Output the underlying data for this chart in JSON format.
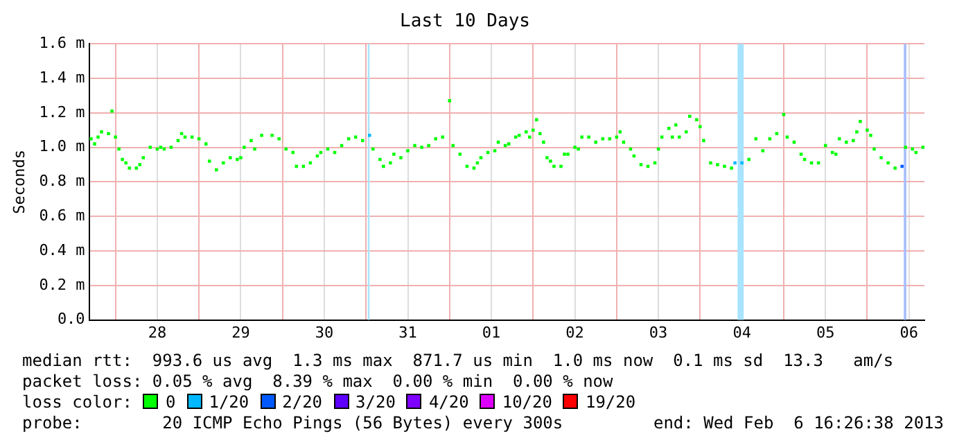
{
  "chart_data": {
    "type": "scatter",
    "title": "Last 10 Days",
    "ylabel": "Seconds",
    "legend_title": "loss color:",
    "legend": "bottom",
    "grid": true,
    "marker": "square",
    "xlim": [
      "2013-01-27T16:26",
      "2013-02-06T16:26"
    ],
    "xticks": [
      {
        "value": "2013-01-28T00:00",
        "label": null
      },
      {
        "value": "2013-01-28T12:00",
        "label": "28"
      },
      {
        "value": "2013-01-29T00:00",
        "label": null
      },
      {
        "value": "2013-01-29T12:00",
        "label": "29"
      },
      {
        "value": "2013-01-30T00:00",
        "label": null
      },
      {
        "value": "2013-01-30T12:00",
        "label": "30"
      },
      {
        "value": "2013-01-31T00:00",
        "label": null
      },
      {
        "value": "2013-01-31T12:00",
        "label": "31"
      },
      {
        "value": "2013-02-01T00:00",
        "label": null
      },
      {
        "value": "2013-02-01T12:00",
        "label": "01"
      },
      {
        "value": "2013-02-02T00:00",
        "label": null
      },
      {
        "value": "2013-02-02T12:00",
        "label": "02"
      },
      {
        "value": "2013-02-03T00:00",
        "label": null
      },
      {
        "value": "2013-02-03T12:00",
        "label": "03"
      },
      {
        "value": "2013-02-04T00:00",
        "label": null
      },
      {
        "value": "2013-02-04T12:00",
        "label": "04"
      },
      {
        "value": "2013-02-05T00:00",
        "label": null
      },
      {
        "value": "2013-02-05T12:00",
        "label": "05"
      },
      {
        "value": "2013-02-06T00:00",
        "label": null
      },
      {
        "value": "2013-02-06T12:00",
        "label": "06"
      }
    ],
    "ylim": [
      0,
      1.6
    ],
    "yticks": [
      {
        "value": 0,
        "label": "0.0"
      },
      {
        "value": 0.2,
        "label": "0.2 m"
      },
      {
        "value": 0.4,
        "label": "0.4 m"
      },
      {
        "value": 0.6,
        "label": "0.6 m"
      },
      {
        "value": 0.8,
        "label": "0.8 m"
      },
      {
        "value": 1.0,
        "label": "1.0 m"
      },
      {
        "value": 1.2,
        "label": "1.2 m"
      },
      {
        "value": 1.4,
        "label": "1.4 m"
      },
      {
        "value": 1.6,
        "label": "1.6 m"
      }
    ],
    "x": [
      "2013-01-27T17:00",
      "2013-01-27T18:00",
      "2013-01-27T19:00",
      "2013-01-27T20:00",
      "2013-01-27T22:00",
      "2013-01-27T23:00",
      "2013-01-28T00:00",
      "2013-01-28T01:00",
      "2013-01-28T02:00",
      "2013-01-28T03:00",
      "2013-01-28T04:00",
      "2013-01-28T06:00",
      "2013-01-28T07:00",
      "2013-01-28T08:00",
      "2013-01-28T10:00",
      "2013-01-28T12:00",
      "2013-01-28T13:00",
      "2013-01-28T14:00",
      "2013-01-28T16:00",
      "2013-01-28T18:00",
      "2013-01-28T19:00",
      "2013-01-28T20:00",
      "2013-01-28T22:00",
      "2013-01-29T00:00",
      "2013-01-29T02:00",
      "2013-01-29T03:00",
      "2013-01-29T05:00",
      "2013-01-29T07:00",
      "2013-01-29T09:00",
      "2013-01-29T11:00",
      "2013-01-29T12:00",
      "2013-01-29T13:00",
      "2013-01-29T15:00",
      "2013-01-29T16:00",
      "2013-01-29T18:00",
      "2013-01-29T21:00",
      "2013-01-29T23:00",
      "2013-01-30T01:00",
      "2013-01-30T03:00",
      "2013-01-30T04:00",
      "2013-01-30T06:00",
      "2013-01-30T08:00",
      "2013-01-30T10:00",
      "2013-01-30T11:00",
      "2013-01-30T13:00",
      "2013-01-30T15:00",
      "2013-01-30T17:00",
      "2013-01-30T19:00",
      "2013-01-30T21:00",
      "2013-01-30T23:00",
      "2013-01-31T01:00",
      "2013-01-31T02:00",
      "2013-01-31T04:00",
      "2013-01-31T05:00",
      "2013-01-31T07:00",
      "2013-01-31T08:00",
      "2013-01-31T10:00",
      "2013-01-31T12:00",
      "2013-01-31T14:00",
      "2013-01-31T16:00",
      "2013-01-31T18:00",
      "2013-01-31T20:00",
      "2013-01-31T22:00",
      "2013-02-01T00:00",
      "2013-02-01T01:00",
      "2013-02-01T03:00",
      "2013-02-01T05:00",
      "2013-02-01T07:00",
      "2013-02-01T08:00",
      "2013-02-01T09:00",
      "2013-02-01T11:00",
      "2013-02-01T13:00",
      "2013-02-01T14:00",
      "2013-02-01T16:00",
      "2013-02-01T17:00",
      "2013-02-01T19:00",
      "2013-02-01T20:00",
      "2013-02-01T22:00",
      "2013-02-01T23:00",
      "2013-02-02T00:00",
      "2013-02-02T01:00",
      "2013-02-02T02:00",
      "2013-02-02T03:00",
      "2013-02-02T04:00",
      "2013-02-02T05:00",
      "2013-02-02T06:00",
      "2013-02-02T08:00",
      "2013-02-02T09:00",
      "2013-02-02T10:00",
      "2013-02-02T12:00",
      "2013-02-02T13:00",
      "2013-02-02T14:00",
      "2013-02-02T16:00",
      "2013-02-02T18:00",
      "2013-02-02T20:00",
      "2013-02-02T22:00",
      "2013-02-03T00:00",
      "2013-02-03T01:00",
      "2013-02-03T02:00",
      "2013-02-03T04:00",
      "2013-02-03T05:00",
      "2013-02-03T07:00",
      "2013-02-03T09:00",
      "2013-02-03T11:00",
      "2013-02-03T12:00",
      "2013-02-03T13:00",
      "2013-02-03T15:00",
      "2013-02-03T16:00",
      "2013-02-03T17:00",
      "2013-02-03T18:00",
      "2013-02-03T20:00",
      "2013-02-03T21:00",
      "2013-02-03T23:00",
      "2013-02-04T00:00",
      "2013-02-04T01:00",
      "2013-02-04T03:00",
      "2013-02-04T05:00",
      "2013-02-04T07:00",
      "2013-02-04T09:00",
      "2013-02-04T10:00",
      "2013-02-04T12:00",
      "2013-02-04T14:00",
      "2013-02-04T16:00",
      "2013-02-04T18:00",
      "2013-02-04T20:00",
      "2013-02-04T22:00",
      "2013-02-05T00:00",
      "2013-02-05T01:00",
      "2013-02-05T03:00",
      "2013-02-05T05:00",
      "2013-02-05T06:00",
      "2013-02-05T08:00",
      "2013-02-05T10:00",
      "2013-02-05T12:00",
      "2013-02-05T14:00",
      "2013-02-05T15:00",
      "2013-02-05T16:00",
      "2013-02-05T18:00",
      "2013-02-05T20:00",
      "2013-02-05T21:00",
      "2013-02-05T22:00",
      "2013-02-06T00:00",
      "2013-02-06T01:00",
      "2013-02-06T02:00",
      "2013-02-06T04:00",
      "2013-02-06T06:00",
      "2013-02-06T08:00",
      "2013-02-06T10:00",
      "2013-02-06T11:00",
      "2013-02-06T13:00",
      "2013-02-06T14:00",
      "2013-02-06T16:00"
    ],
    "series": [
      {
        "name": "0",
        "color": "#00ff00",
        "values": [
          1.05,
          1.02,
          1.06,
          1.09,
          1.08,
          1.21,
          1.06,
          0.99,
          0.93,
          0.91,
          0.88,
          0.88,
          0.9,
          0.94,
          1.0,
          0.99,
          1.0,
          0.99,
          1.0,
          1.04,
          1.08,
          1.06,
          1.06,
          1.05,
          1.02,
          0.92,
          0.87,
          0.91,
          0.94,
          0.93,
          0.94,
          1.0,
          1.04,
          0.99,
          1.07,
          1.07,
          1.05,
          0.99,
          0.97,
          0.89,
          0.89,
          0.91,
          0.95,
          0.97,
          0.99,
          0.97,
          1.01,
          1.05,
          1.06,
          1.04,
          null,
          0.99,
          0.93,
          0.89,
          0.91,
          0.96,
          0.94,
          0.98,
          1.01,
          1.0,
          1.01,
          1.05,
          1.06,
          1.27,
          1.01,
          0.96,
          0.89,
          0.88,
          0.91,
          0.94,
          0.97,
          0.98,
          1.03,
          1.01,
          1.02,
          1.06,
          1.07,
          1.09,
          1.06,
          1.1,
          1.16,
          1.08,
          1.03,
          0.94,
          0.92,
          0.89,
          0.89,
          0.96,
          0.96,
          1.0,
          0.99,
          1.06,
          1.06,
          1.03,
          1.05,
          1.05,
          1.06,
          1.09,
          1.03,
          0.99,
          0.95,
          0.9,
          0.89,
          0.91,
          0.99,
          1.06,
          1.11,
          1.06,
          1.13,
          1.06,
          1.09,
          1.18,
          1.16,
          1.12,
          1.04,
          0.91,
          0.9,
          0.89,
          0.88,
          null,
          null,
          0.93,
          1.05,
          0.98,
          1.05,
          1.08,
          1.19,
          1.06,
          1.03,
          0.96,
          0.93,
          0.91,
          0.91,
          1.01,
          0.97,
          0.96,
          1.05,
          1.03,
          1.04,
          1.09,
          1.15,
          1.1,
          1.07,
          0.99,
          0.94,
          0.91,
          0.88,
          null,
          1.0,
          0.99,
          0.97,
          1.0
        ]
      },
      {
        "name": "1/20",
        "color": "#00b8ff",
        "x": [
          "2013-01-31T01:00",
          "2013-02-04T10:00",
          "2013-02-04T12:00"
        ],
        "values": [
          1.07,
          0.91,
          0.91
        ]
      },
      {
        "name": "2/20",
        "color": "#0059ff",
        "x": [
          "2013-02-06T10:00"
        ],
        "values": [
          0.89
        ]
      },
      {
        "name": "3/20",
        "color": "#5e00ff",
        "values": [
          null,
          null,
          null,
          null,
          null,
          null,
          null,
          null,
          null,
          null,
          null,
          null,
          null,
          null,
          null,
          null,
          null,
          null,
          null,
          null,
          null,
          null,
          null,
          null,
          null,
          null,
          null,
          null,
          null,
          null,
          null,
          null,
          null,
          null,
          null,
          null,
          null,
          null,
          null,
          null,
          null,
          null,
          null,
          null,
          null,
          null,
          null,
          null,
          null,
          null,
          null,
          null,
          null,
          null,
          null,
          null,
          null,
          null,
          null,
          null,
          null,
          null,
          null,
          null,
          null,
          null,
          null,
          null,
          null,
          null,
          null,
          null,
          null,
          null,
          null,
          null,
          null,
          null,
          null,
          null,
          null,
          null,
          null,
          null,
          null,
          null,
          null,
          null,
          null,
          null,
          null,
          null,
          null,
          null,
          null,
          null,
          null,
          null,
          null,
          null,
          null,
          null,
          null,
          null,
          null,
          null,
          null,
          null,
          null,
          null,
          null,
          null,
          null,
          null,
          null,
          null,
          null,
          null,
          null,
          null,
          null,
          null,
          null,
          null,
          null,
          null,
          null,
          null,
          null,
          null,
          null,
          null,
          null,
          null,
          null,
          null,
          null,
          null,
          null,
          null,
          null,
          null,
          null,
          null,
          null,
          null,
          null,
          null,
          null,
          null,
          null,
          null
        ]
      },
      {
        "name": "4/20",
        "color": "#7e00ff",
        "values": [
          null,
          null,
          null,
          null,
          null,
          null,
          null,
          null,
          null,
          null,
          null,
          null,
          null,
          null,
          null,
          null,
          null,
          null,
          null,
          null,
          null,
          null,
          null,
          null,
          null,
          null,
          null,
          null,
          null,
          null,
          null,
          null,
          null,
          null,
          null,
          null,
          null,
          null,
          null,
          null,
          null,
          null,
          null,
          null,
          null,
          null,
          null,
          null,
          null,
          null,
          null,
          null,
          null,
          null,
          null,
          null,
          null,
          null,
          null,
          null,
          null,
          null,
          null,
          null,
          null,
          null,
          null,
          null,
          null,
          null,
          null,
          null,
          null,
          null,
          null,
          null,
          null,
          null,
          null,
          null,
          null,
          null,
          null,
          null,
          null,
          null,
          null,
          null,
          null,
          null,
          null,
          null,
          null,
          null,
          null,
          null,
          null,
          null,
          null,
          null,
          null,
          null,
          null,
          null,
          null,
          null,
          null,
          null,
          null,
          null,
          null,
          null,
          null,
          null,
          null,
          null,
          null,
          null,
          null,
          null,
          null,
          null,
          null,
          null,
          null,
          null,
          null,
          null,
          null,
          null,
          null,
          null,
          null,
          null,
          null,
          null,
          null,
          null,
          null,
          null,
          null,
          null,
          null,
          null,
          null,
          null,
          null,
          null,
          null,
          null,
          null,
          null
        ]
      },
      {
        "name": "10/20",
        "color": "#dd00ff",
        "values": [
          null,
          null,
          null,
          null,
          null,
          null,
          null,
          null,
          null,
          null,
          null,
          null,
          null,
          null,
          null,
          null,
          null,
          null,
          null,
          null,
          null,
          null,
          null,
          null,
          null,
          null,
          null,
          null,
          null,
          null,
          null,
          null,
          null,
          null,
          null,
          null,
          null,
          null,
          null,
          null,
          null,
          null,
          null,
          null,
          null,
          null,
          null,
          null,
          null,
          null,
          null,
          null,
          null,
          null,
          null,
          null,
          null,
          null,
          null,
          null,
          null,
          null,
          null,
          null,
          null,
          null,
          null,
          null,
          null,
          null,
          null,
          null,
          null,
          null,
          null,
          null,
          null,
          null,
          null,
          null,
          null,
          null,
          null,
          null,
          null,
          null,
          null,
          null,
          null,
          null,
          null,
          null,
          null,
          null,
          null,
          null,
          null,
          null,
          null,
          null,
          null,
          null,
          null,
          null,
          null,
          null,
          null,
          null,
          null,
          null,
          null,
          null,
          null,
          null,
          null,
          null,
          null,
          null,
          null,
          null,
          null,
          null,
          null,
          null,
          null,
          null,
          null,
          null,
          null,
          null,
          null,
          null,
          null,
          null,
          null,
          null,
          null,
          null,
          null,
          null,
          null,
          null,
          null,
          null,
          null,
          null,
          null,
          null,
          null,
          null,
          null,
          null
        ]
      },
      {
        "name": "19/20",
        "color": "#ff0000",
        "values": [
          null,
          null,
          null,
          null,
          null,
          null,
          null,
          null,
          null,
          null,
          null,
          null,
          null,
          null,
          null,
          null,
          null,
          null,
          null,
          null,
          null,
          null,
          null,
          null,
          null,
          null,
          null,
          null,
          null,
          null,
          null,
          null,
          null,
          null,
          null,
          null,
          null,
          null,
          null,
          null,
          null,
          null,
          null,
          null,
          null,
          null,
          null,
          null,
          null,
          null,
          null,
          null,
          null,
          null,
          null,
          null,
          null,
          null,
          null,
          null,
          null,
          null,
          null,
          null,
          null,
          null,
          null,
          null,
          null,
          null,
          null,
          null,
          null,
          null,
          null,
          null,
          null,
          null,
          null,
          null,
          null,
          null,
          null,
          null,
          null,
          null,
          null,
          null,
          null,
          null,
          null,
          null,
          null,
          null,
          null,
          null,
          null,
          null,
          null,
          null,
          null,
          null,
          null,
          null,
          null,
          null,
          null,
          null,
          null,
          null,
          null,
          null,
          null,
          null,
          null,
          null,
          null,
          null,
          null,
          null,
          null,
          null,
          null,
          null,
          null,
          null,
          null,
          null,
          null,
          null,
          null,
          null,
          null,
          null,
          null,
          null,
          null,
          null,
          null,
          null,
          null,
          null,
          null,
          null,
          null,
          null,
          null,
          null,
          null,
          null,
          null,
          null
        ]
      }
    ],
    "bands": [
      {
        "axis": "x",
        "from": "2013-01-31T00:30",
        "to": "2013-01-31T01:00",
        "color": "#a8e4ff"
      },
      {
        "axis": "x",
        "from": "2013-02-04T10:45",
        "to": "2013-02-04T12:30",
        "color": "#a8e4ff"
      },
      {
        "axis": "x",
        "from": "2013-02-06T10:30",
        "to": "2013-02-06T11:15",
        "color": "#a8c0ff"
      }
    ],
    "annotations": [
      "median rtt:  993.6 us avg  1.3 ms max  871.7 us min  1.0 ms now  0.1 ms sd  13.3   am/s",
      "packet loss: 0.05 % avg  8.39 % max  0.00 % min  0.00 % now",
      "probe:        20 ICMP Echo Pings (56 Bytes) every 300s",
      "end: Wed Feb  6 16:26:38 2013"
    ]
  }
}
